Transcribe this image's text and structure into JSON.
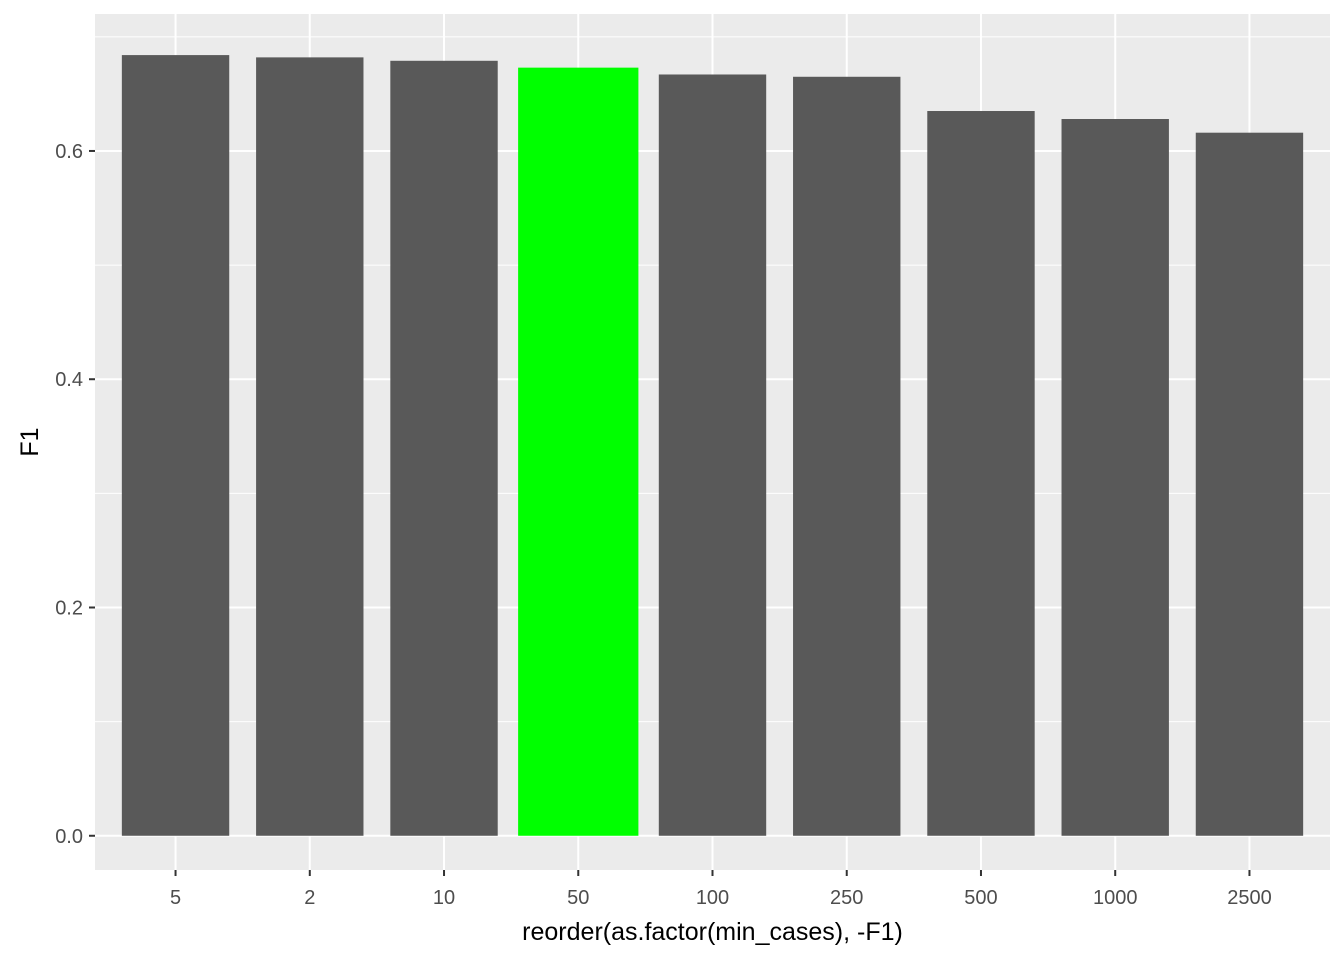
{
  "chart_data": {
    "type": "bar",
    "categories": [
      "5",
      "2",
      "10",
      "50",
      "100",
      "250",
      "500",
      "1000",
      "2500"
    ],
    "values": [
      0.684,
      0.682,
      0.679,
      0.673,
      0.667,
      0.665,
      0.635,
      0.628,
      0.616
    ],
    "highlight_category": "50",
    "bar_color": "#595959",
    "highlight_color": "#00FF00",
    "panel_background": "#EBEBEB",
    "grid_color": "#FFFFFF",
    "xlabel": "reorder(as.factor(min_cases), -F1)",
    "ylabel": "F1",
    "ylim": [
      -0.03,
      0.72
    ],
    "y_ticks": [
      0.0,
      0.2,
      0.4,
      0.6
    ],
    "y_tick_labels": [
      "0.0",
      "0.2",
      "0.4",
      "0.6"
    ],
    "grid": true,
    "legend": "none"
  }
}
